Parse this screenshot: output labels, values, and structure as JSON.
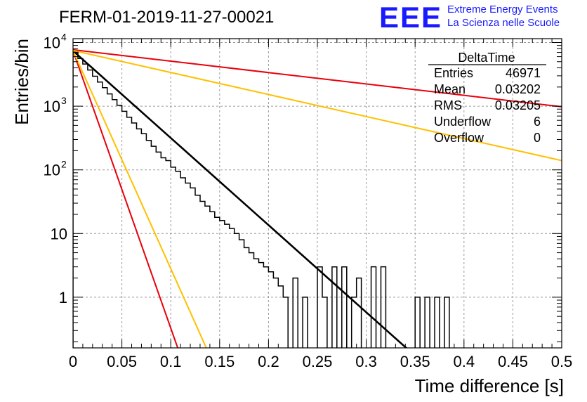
{
  "header": {
    "run_title": "FERM-01-2019-11-27-00021",
    "logo_text": "EEE",
    "logo_line1": "Extreme Energy Events",
    "logo_line2": "La Scienza nelle Scuole"
  },
  "stats_box": {
    "name": "DeltaTime",
    "rows": [
      {
        "label": "Entries",
        "value": "46971"
      },
      {
        "label": "Mean",
        "value": "0.03202"
      },
      {
        "label": "RMS",
        "value": "0.03205"
      },
      {
        "label": "Underflow",
        "value": "6"
      },
      {
        "label": "Overflow",
        "value": "0"
      }
    ]
  },
  "colors": {
    "histogram": "#000000",
    "fit": "#000000",
    "red": "#e8000b",
    "orange": "#ffc000",
    "grid": "#9a9a9a",
    "logo": "#1a1aff"
  },
  "chart_data": {
    "type": "line",
    "xlabel": "Time difference [s]",
    "ylabel": "Entries/bin",
    "xlim": [
      0,
      0.5
    ],
    "ylim": [
      0.16,
      11500
    ],
    "yscale": "log",
    "grid": true,
    "x_ticks": [
      "0",
      "0.05",
      "0.1",
      "0.15",
      "0.2",
      "0.25",
      "0.3",
      "0.35",
      "0.4",
      "0.45",
      "0.5"
    ],
    "y_ticks": [
      {
        "value": 1,
        "label": "1"
      },
      {
        "value": 10,
        "label": "10"
      },
      {
        "value": 100,
        "label": "10",
        "exp": "2"
      },
      {
        "value": 1000,
        "label": "10",
        "exp": "3"
      },
      {
        "value": 10000,
        "label": "10",
        "exp": "4"
      }
    ],
    "histogram": {
      "bin_width": 0.005,
      "bins": [
        [
          0.0,
          7000
        ],
        [
          0.005,
          5600
        ],
        [
          0.01,
          4600
        ],
        [
          0.015,
          3700
        ],
        [
          0.02,
          2950
        ],
        [
          0.025,
          2400
        ],
        [
          0.03,
          1950
        ],
        [
          0.035,
          1560
        ],
        [
          0.04,
          1270
        ],
        [
          0.045,
          1030
        ],
        [
          0.05,
          830
        ],
        [
          0.055,
          670
        ],
        [
          0.06,
          545
        ],
        [
          0.065,
          440
        ],
        [
          0.07,
          370
        ],
        [
          0.075,
          290
        ],
        [
          0.08,
          235
        ],
        [
          0.085,
          190
        ],
        [
          0.09,
          155
        ],
        [
          0.095,
          140
        ],
        [
          0.1,
          110
        ],
        [
          0.105,
          95
        ],
        [
          0.11,
          75
        ],
        [
          0.115,
          62
        ],
        [
          0.12,
          52
        ],
        [
          0.125,
          40
        ],
        [
          0.13,
          32
        ],
        [
          0.135,
          27
        ],
        [
          0.14,
          22
        ],
        [
          0.145,
          18
        ],
        [
          0.15,
          16
        ],
        [
          0.155,
          14
        ],
        [
          0.16,
          12
        ],
        [
          0.165,
          10
        ],
        [
          0.17,
          8
        ],
        [
          0.175,
          6
        ],
        [
          0.18,
          5
        ],
        [
          0.185,
          4
        ],
        [
          0.19,
          3.5
        ],
        [
          0.195,
          3
        ],
        [
          0.2,
          2.5
        ],
        [
          0.205,
          2
        ],
        [
          0.21,
          1.5
        ],
        [
          0.215,
          1
        ],
        [
          0.22,
          0
        ],
        [
          0.225,
          2
        ],
        [
          0.23,
          0
        ],
        [
          0.235,
          1
        ],
        [
          0.24,
          0
        ],
        [
          0.245,
          0
        ],
        [
          0.25,
          3
        ],
        [
          0.255,
          1
        ],
        [
          0.26,
          0
        ],
        [
          0.265,
          3
        ],
        [
          0.27,
          0
        ],
        [
          0.275,
          3
        ],
        [
          0.28,
          0
        ],
        [
          0.285,
          1
        ],
        [
          0.29,
          2
        ],
        [
          0.295,
          0
        ],
        [
          0.3,
          0
        ],
        [
          0.305,
          0
        ],
        [
          0.31,
          0
        ],
        [
          0.315,
          0
        ],
        [
          0.32,
          0
        ],
        [
          0.325,
          0
        ],
        [
          0.33,
          0
        ],
        [
          0.335,
          0
        ],
        [
          0.34,
          0
        ],
        [
          0.345,
          0
        ],
        [
          0.35,
          0
        ],
        [
          0.355,
          0
        ],
        [
          0.36,
          0
        ],
        [
          0.365,
          0
        ],
        [
          0.37,
          0
        ],
        [
          0.375,
          0
        ],
        [
          0.38,
          0
        ],
        [
          0.385,
          0
        ],
        [
          0.39,
          0
        ],
        [
          0.395,
          0
        ]
      ]
    },
    "series": [
      {
        "color": "black",
        "x": [
          0,
          0.35
        ],
        "y": [
          7400,
          0.12
        ]
      },
      {
        "color": "red",
        "x": [
          0,
          0.5
        ],
        "y": [
          7700,
          980
        ]
      },
      {
        "color": "red",
        "x": [
          0,
          0.11
        ],
        "y": [
          7400,
          0.12
        ]
      },
      {
        "color": "orange",
        "x": [
          0,
          0.5
        ],
        "y": [
          7500,
          140
        ]
      },
      {
        "color": "orange",
        "x": [
          0,
          0.14
        ],
        "y": [
          7400,
          0.12
        ]
      }
    ]
  }
}
